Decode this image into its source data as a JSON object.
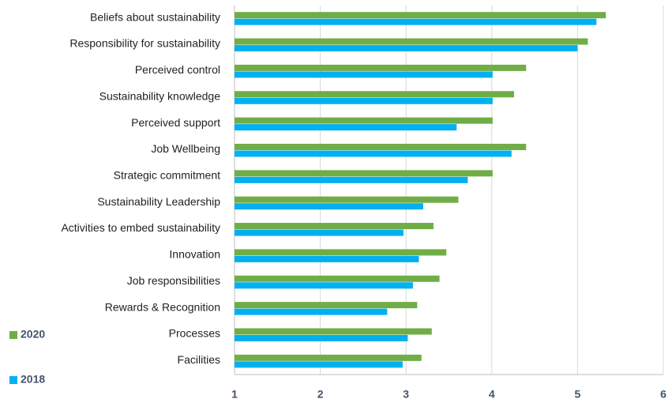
{
  "chart_data": {
    "type": "barh",
    "categories": [
      "Beliefs about sustainability",
      "Responsibility for sustainability",
      "Perceived control",
      "Sustainability knowledge",
      "Perceived support",
      "Job Wellbeing",
      "Strategic commitment",
      "Sustainability Leadership",
      "Activities to embed sustainability",
      "Innovation",
      "Job responsibilities",
      "Rewards & Recognition",
      "Processes",
      "Facilities"
    ],
    "series": [
      {
        "name": "2020",
        "color": "#70ad47",
        "values": [
          5.33,
          5.12,
          4.4,
          4.26,
          4.01,
          4.4,
          4.01,
          3.61,
          3.32,
          3.47,
          3.39,
          3.13,
          3.3,
          3.18
        ]
      },
      {
        "name": "2018",
        "color": "#00b0f0",
        "values": [
          5.22,
          5.0,
          4.01,
          4.01,
          3.59,
          4.23,
          3.72,
          3.2,
          2.97,
          3.15,
          3.08,
          2.78,
          3.02,
          2.96
        ]
      }
    ],
    "xlim": [
      1,
      6
    ],
    "xticks": [
      1,
      2,
      3,
      4,
      5,
      6
    ],
    "grid": true
  }
}
